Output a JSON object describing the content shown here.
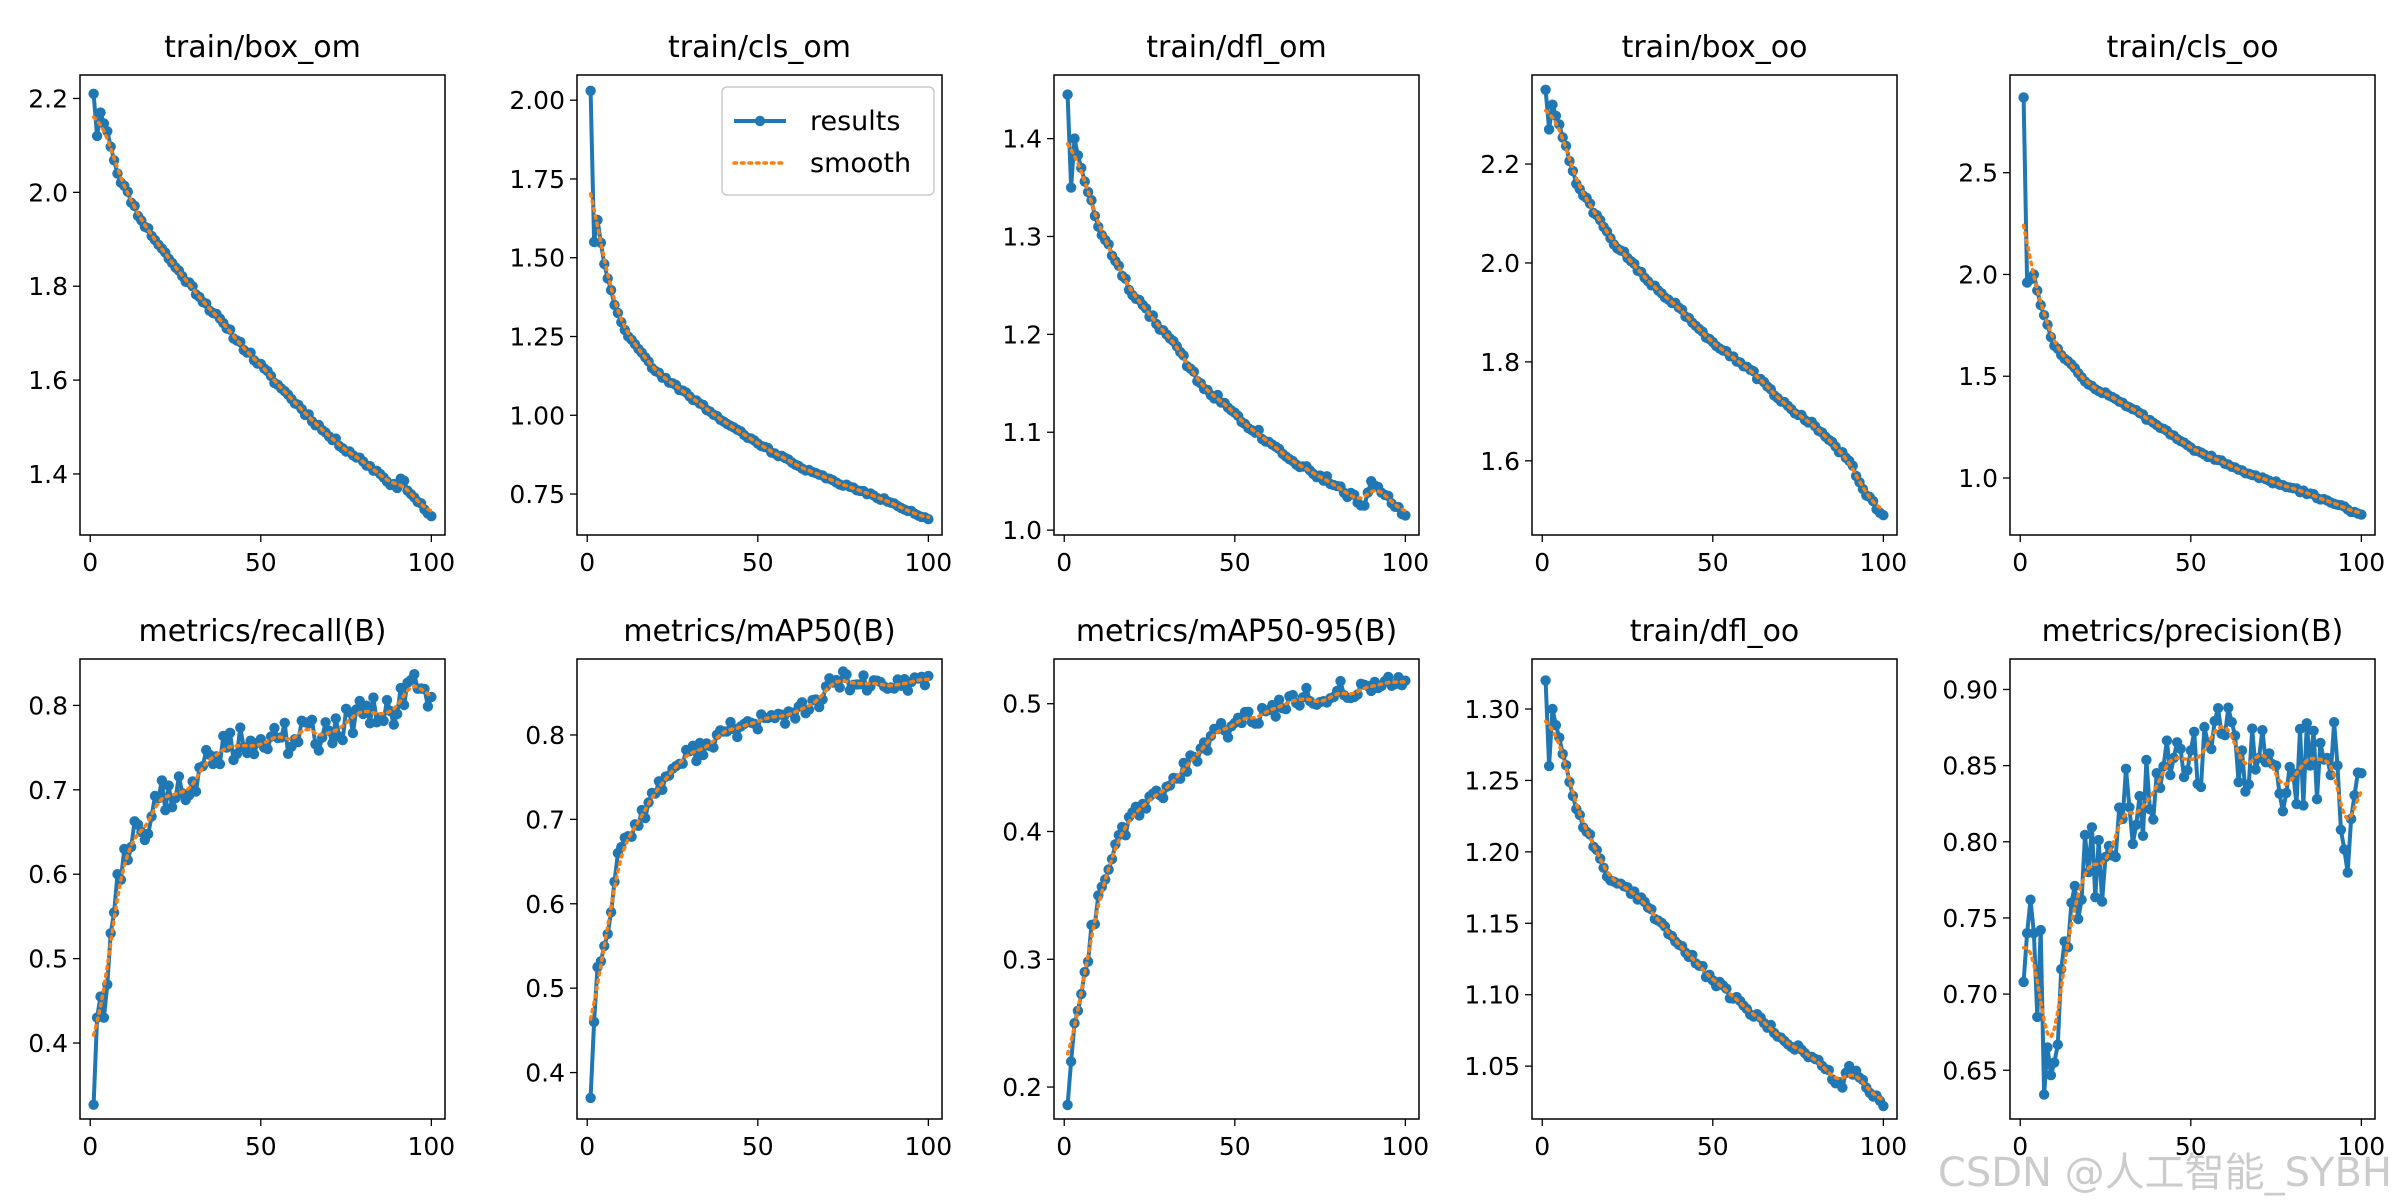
{
  "colors": {
    "results": "#1f77b4",
    "smooth": "#ff7f0e",
    "axis": "#000000"
  },
  "legend": {
    "results_label": "results",
    "smooth_label": "smooth",
    "placement": "upper-right of train/cls_om"
  },
  "watermark": "CSDN @人工智能_SYBH",
  "chart_data": [
    {
      "type": "line",
      "title": "train/box_om",
      "xlim": [
        -3,
        104
      ],
      "ylim": [
        1.27,
        2.25
      ],
      "xticks": [
        0,
        50,
        100
      ],
      "yticks": [
        1.4,
        1.6,
        1.8,
        2.0,
        2.2
      ],
      "ytick_labels": [
        "1.4",
        "1.6",
        "1.8",
        "2.0",
        "2.2"
      ],
      "anchors": [
        [
          1,
          2.21
        ],
        [
          2,
          2.12
        ],
        [
          3,
          2.17
        ],
        [
          5,
          2.13
        ],
        [
          8,
          2.04
        ],
        [
          15,
          1.94
        ],
        [
          25,
          1.84
        ],
        [
          40,
          1.71
        ],
        [
          55,
          1.59
        ],
        [
          70,
          1.48
        ],
        [
          85,
          1.4
        ],
        [
          90,
          1.37
        ],
        [
          91,
          1.39
        ],
        [
          95,
          1.35
        ],
        [
          100,
          1.31
        ]
      ],
      "noise": 0.006,
      "seed": 11,
      "legend": false
    },
    {
      "type": "line",
      "title": "train/cls_om",
      "xlim": [
        -3,
        104
      ],
      "ylim": [
        0.62,
        2.08
      ],
      "xticks": [
        0,
        50,
        100
      ],
      "yticks": [
        0.75,
        1.0,
        1.25,
        1.5,
        1.75,
        2.0
      ],
      "ytick_labels": [
        "0.75",
        "1.00",
        "1.25",
        "1.50",
        "1.75",
        "2.00"
      ],
      "anchors": [
        [
          1,
          2.03
        ],
        [
          2,
          1.55
        ],
        [
          3,
          1.62
        ],
        [
          5,
          1.48
        ],
        [
          8,
          1.35
        ],
        [
          12,
          1.25
        ],
        [
          20,
          1.14
        ],
        [
          30,
          1.06
        ],
        [
          40,
          0.98
        ],
        [
          50,
          0.91
        ],
        [
          60,
          0.85
        ],
        [
          70,
          0.8
        ],
        [
          80,
          0.76
        ],
        [
          90,
          0.72
        ],
        [
          100,
          0.67
        ]
      ],
      "noise": 0.005,
      "seed": 22,
      "legend": true
    },
    {
      "type": "line",
      "title": "train/dfl_om",
      "xlim": [
        -3,
        104
      ],
      "ylim": [
        0.995,
        1.465
      ],
      "xticks": [
        0,
        50,
        100
      ],
      "yticks": [
        1.0,
        1.1,
        1.2,
        1.3,
        1.4
      ],
      "ytick_labels": [
        "1.0",
        "1.1",
        "1.2",
        "1.3",
        "1.4"
      ],
      "anchors": [
        [
          1,
          1.445
        ],
        [
          2,
          1.35
        ],
        [
          3,
          1.4
        ],
        [
          5,
          1.37
        ],
        [
          10,
          1.31
        ],
        [
          20,
          1.24
        ],
        [
          30,
          1.2
        ],
        [
          40,
          1.15
        ],
        [
          50,
          1.12
        ],
        [
          60,
          1.09
        ],
        [
          70,
          1.065
        ],
        [
          80,
          1.045
        ],
        [
          88,
          1.025
        ],
        [
          90,
          1.05
        ],
        [
          95,
          1.035
        ],
        [
          100,
          1.015
        ]
      ],
      "noise": 0.004,
      "seed": 33,
      "legend": false
    },
    {
      "type": "line",
      "title": "train/box_oo",
      "xlim": [
        -3,
        104
      ],
      "ylim": [
        1.45,
        2.38
      ],
      "xticks": [
        0,
        50,
        100
      ],
      "yticks": [
        1.6,
        1.8,
        2.0,
        2.2
      ],
      "ytick_labels": [
        "1.6",
        "1.8",
        "2.0",
        "2.2"
      ],
      "anchors": [
        [
          1,
          2.35
        ],
        [
          2,
          2.27
        ],
        [
          3,
          2.32
        ],
        [
          5,
          2.28
        ],
        [
          10,
          2.16
        ],
        [
          20,
          2.05
        ],
        [
          30,
          1.97
        ],
        [
          40,
          1.91
        ],
        [
          50,
          1.84
        ],
        [
          60,
          1.79
        ],
        [
          70,
          1.72
        ],
        [
          80,
          1.67
        ],
        [
          90,
          1.6
        ],
        [
          95,
          1.53
        ],
        [
          100,
          1.49
        ]
      ],
      "noise": 0.005,
      "seed": 44,
      "legend": false
    },
    {
      "type": "line",
      "title": "train/cls_oo",
      "xlim": [
        -3,
        104
      ],
      "ylim": [
        0.72,
        2.98
      ],
      "xticks": [
        0,
        50,
        100
      ],
      "yticks": [
        1.0,
        1.5,
        2.0,
        2.5
      ],
      "ytick_labels": [
        "1.0",
        "1.5",
        "2.0",
        "2.5"
      ],
      "anchors": [
        [
          1,
          2.87
        ],
        [
          2,
          1.96
        ],
        [
          4,
          2.0
        ],
        [
          6,
          1.85
        ],
        [
          10,
          1.65
        ],
        [
          20,
          1.46
        ],
        [
          30,
          1.37
        ],
        [
          40,
          1.26
        ],
        [
          50,
          1.15
        ],
        [
          60,
          1.07
        ],
        [
          70,
          1.0
        ],
        [
          80,
          0.95
        ],
        [
          90,
          0.89
        ],
        [
          100,
          0.82
        ]
      ],
      "noise": 0.008,
      "seed": 55,
      "legend": false
    },
    {
      "type": "line",
      "title": "metrics/recall(B)",
      "xlim": [
        -3,
        104
      ],
      "ylim": [
        0.31,
        0.855
      ],
      "xticks": [
        0,
        50,
        100
      ],
      "yticks": [
        0.4,
        0.5,
        0.6,
        0.7,
        0.8
      ],
      "ytick_labels": [
        "0.4",
        "0.5",
        "0.6",
        "0.7",
        "0.8"
      ],
      "anchors": [
        [
          1,
          0.327
        ],
        [
          2,
          0.43
        ],
        [
          3,
          0.455
        ],
        [
          4,
          0.43
        ],
        [
          6,
          0.53
        ],
        [
          8,
          0.6
        ],
        [
          10,
          0.63
        ],
        [
          15,
          0.65
        ],
        [
          20,
          0.69
        ],
        [
          30,
          0.71
        ],
        [
          40,
          0.75
        ],
        [
          50,
          0.76
        ],
        [
          60,
          0.76
        ],
        [
          70,
          0.77
        ],
        [
          80,
          0.79
        ],
        [
          90,
          0.79
        ],
        [
          94,
          0.83
        ],
        [
          97,
          0.82
        ],
        [
          100,
          0.81
        ]
      ],
      "noise": 0.022,
      "seed": 66,
      "legend": false
    },
    {
      "type": "line",
      "title": "metrics/mAP50(B)",
      "xlim": [
        -3,
        104
      ],
      "ylim": [
        0.345,
        0.89
      ],
      "xticks": [
        0,
        50,
        100
      ],
      "yticks": [
        0.4,
        0.5,
        0.6,
        0.7,
        0.8
      ],
      "ytick_labels": [
        "0.4",
        "0.5",
        "0.6",
        "0.7",
        "0.8"
      ],
      "anchors": [
        [
          1,
          0.37
        ],
        [
          2,
          0.46
        ],
        [
          3,
          0.525
        ],
        [
          5,
          0.55
        ],
        [
          7,
          0.59
        ],
        [
          9,
          0.66
        ],
        [
          12,
          0.68
        ],
        [
          18,
          0.72
        ],
        [
          25,
          0.76
        ],
        [
          35,
          0.79
        ],
        [
          45,
          0.81
        ],
        [
          55,
          0.82
        ],
        [
          65,
          0.83
        ],
        [
          73,
          0.865
        ],
        [
          80,
          0.86
        ],
        [
          90,
          0.855
        ],
        [
          100,
          0.87
        ]
      ],
      "noise": 0.012,
      "seed": 77,
      "legend": false
    },
    {
      "type": "line",
      "title": "metrics/mAP50-95(B)",
      "xlim": [
        -3,
        104
      ],
      "ylim": [
        0.175,
        0.535
      ],
      "xticks": [
        0,
        50,
        100
      ],
      "yticks": [
        0.2,
        0.3,
        0.4,
        0.5
      ],
      "ytick_labels": [
        "0.2",
        "0.3",
        "0.4",
        "0.5"
      ],
      "anchors": [
        [
          1,
          0.186
        ],
        [
          2,
          0.22
        ],
        [
          3,
          0.25
        ],
        [
          6,
          0.29
        ],
        [
          10,
          0.35
        ],
        [
          15,
          0.39
        ],
        [
          20,
          0.415
        ],
        [
          30,
          0.435
        ],
        [
          40,
          0.465
        ],
        [
          50,
          0.485
        ],
        [
          60,
          0.495
        ],
        [
          70,
          0.505
        ],
        [
          80,
          0.51
        ],
        [
          90,
          0.51
        ],
        [
          100,
          0.518
        ]
      ],
      "noise": 0.008,
      "seed": 88,
      "legend": false
    },
    {
      "type": "line",
      "title": "train/dfl_oo",
      "xlim": [
        -3,
        104
      ],
      "ylim": [
        1.013,
        1.335
      ],
      "xticks": [
        0,
        50,
        100
      ],
      "yticks": [
        1.05,
        1.1,
        1.15,
        1.2,
        1.25,
        1.3
      ],
      "ytick_labels": [
        "1.05",
        "1.10",
        "1.15",
        "1.20",
        "1.25",
        "1.30"
      ],
      "anchors": [
        [
          1,
          1.32
        ],
        [
          2,
          1.26
        ],
        [
          3,
          1.3
        ],
        [
          5,
          1.28
        ],
        [
          10,
          1.23
        ],
        [
          20,
          1.18
        ],
        [
          30,
          1.165
        ],
        [
          40,
          1.135
        ],
        [
          50,
          1.11
        ],
        [
          60,
          1.09
        ],
        [
          70,
          1.07
        ],
        [
          80,
          1.055
        ],
        [
          88,
          1.035
        ],
        [
          90,
          1.05
        ],
        [
          95,
          1.035
        ],
        [
          100,
          1.022
        ]
      ],
      "noise": 0.003,
      "seed": 99,
      "legend": false
    },
    {
      "type": "line",
      "title": "metrics/precision(B)",
      "xlim": [
        -3,
        104
      ],
      "ylim": [
        0.618,
        0.92
      ],
      "xticks": [
        0,
        50,
        100
      ],
      "yticks": [
        0.65,
        0.7,
        0.75,
        0.8,
        0.85,
        0.9
      ],
      "ytick_labels": [
        "0.65",
        "0.70",
        "0.75",
        "0.80",
        "0.85",
        "0.90"
      ],
      "anchors": [
        [
          1,
          0.708
        ],
        [
          2,
          0.74
        ],
        [
          3,
          0.762
        ],
        [
          4,
          0.74
        ],
        [
          5,
          0.685
        ],
        [
          6,
          0.742
        ],
        [
          7,
          0.634
        ],
        [
          8,
          0.665
        ],
        [
          10,
          0.655
        ],
        [
          15,
          0.76
        ],
        [
          20,
          0.78
        ],
        [
          25,
          0.79
        ],
        [
          30,
          0.815
        ],
        [
          35,
          0.83
        ],
        [
          40,
          0.845
        ],
        [
          45,
          0.855
        ],
        [
          50,
          0.86
        ],
        [
          55,
          0.865
        ],
        [
          60,
          0.87
        ],
        [
          65,
          0.86
        ],
        [
          70,
          0.855
        ],
        [
          75,
          0.85
        ],
        [
          80,
          0.845
        ],
        [
          85,
          0.85
        ],
        [
          90,
          0.855
        ],
        [
          93,
          0.85
        ],
        [
          95,
          0.795
        ],
        [
          97,
          0.815
        ],
        [
          100,
          0.845
        ]
      ],
      "noise": 0.03,
      "seed": 111,
      "legend": false
    }
  ]
}
